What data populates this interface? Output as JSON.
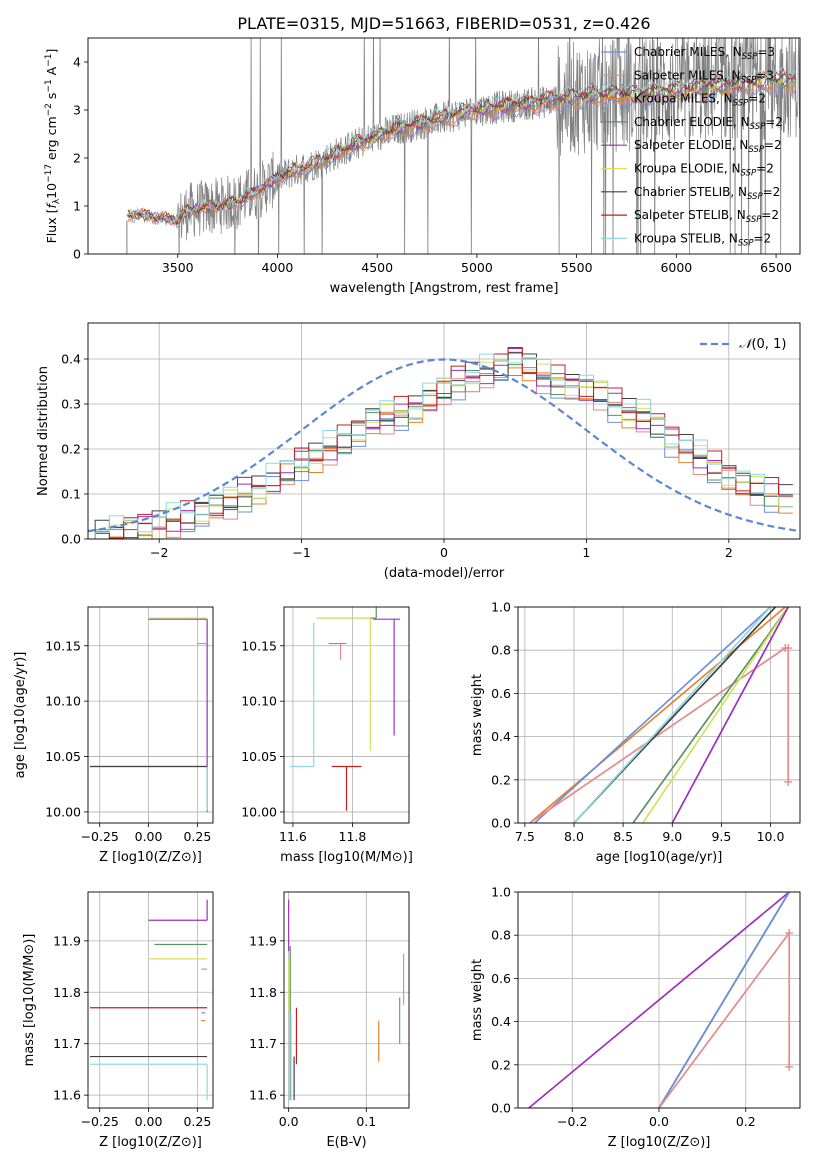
{
  "figure": {
    "title": "PLATE=0315, MJD=51663, FIBERID=0531, z=0.426"
  },
  "legend_models": [
    {
      "name": "Chabrier MILES, N_SSP=3",
      "color": "#6e8fdc"
    },
    {
      "name": "Salpeter MILES, N_SSP=3",
      "color": "#e68a8a"
    },
    {
      "name": "Kroupa MILES, N_SSP=2",
      "color": "#e8822a"
    },
    {
      "name": "Chabrier ELODIE, N_SSP=2",
      "color": "#5a9068"
    },
    {
      "name": "Salpeter ELODIE, N_SSP=2",
      "color": "#9b30c0"
    },
    {
      "name": "Kroupa ELODIE, N_SSP=2",
      "color": "#d4e25a"
    },
    {
      "name": "Chabrier STELIB, N_SSP=2",
      "color": "#404040"
    },
    {
      "name": "Salpeter STELIB, N_SSP=2",
      "color": "#c02020"
    },
    {
      "name": "Kroupa STELIB, N_SSP=2",
      "color": "#90d8e0"
    }
  ],
  "legend_labels": [
    {
      "pre": "Chabrier MILES, N",
      "sub": "SSP",
      "post": "=3"
    },
    {
      "pre": "Salpeter MILES, N",
      "sub": "SSP",
      "post": "=3"
    },
    {
      "pre": "Kroupa MILES, N",
      "sub": "SSP",
      "post": "=2"
    },
    {
      "pre": "Chabrier ELODIE, N",
      "sub": "SSP",
      "post": "=2"
    },
    {
      "pre": "Salpeter ELODIE, N",
      "sub": "SSP",
      "post": "=2"
    },
    {
      "pre": "Kroupa ELODIE, N",
      "sub": "SSP",
      "post": "=2"
    },
    {
      "pre": "Chabrier STELIB, N",
      "sub": "SSP",
      "post": "=2"
    },
    {
      "pre": "Salpeter STELIB, N",
      "sub": "SSP",
      "post": "=2"
    },
    {
      "pre": "Kroupa STELIB, N",
      "sub": "SSP",
      "post": "=2"
    }
  ],
  "chart_data": [
    {
      "id": "spectrum",
      "type": "line",
      "xlabel": "wavelength [Angstrom, rest frame]",
      "ylabel": "Flux [fλ10⁻¹⁷ erg cm⁻² s⁻¹ A⁻¹]",
      "xlim": [
        3050,
        6620
      ],
      "ylim": [
        0,
        4.5
      ],
      "xticks": [
        3500,
        4000,
        4500,
        5000,
        5500,
        6000,
        6500
      ],
      "yticks": [
        0,
        1,
        2,
        3,
        4
      ],
      "data_color": "#808080",
      "model_anchor_points": {
        "x": [
          3245,
          3300,
          3500,
          3550,
          3700,
          3800,
          3900,
          4000,
          4200,
          4400,
          4600,
          4800,
          5000,
          5200,
          5400,
          5600,
          5800,
          6000,
          6200,
          6400,
          6500
        ],
        "y": [
          0.8,
          0.82,
          0.7,
          0.9,
          1.0,
          1.1,
          1.3,
          1.6,
          1.9,
          2.3,
          2.6,
          2.8,
          3.0,
          3.1,
          3.2,
          3.3,
          3.3,
          3.4,
          3.5,
          3.55,
          3.6
        ]
      },
      "grid": false
    },
    {
      "id": "residuals",
      "type": "line",
      "xlabel": "(data-model)/error",
      "ylabel": "Normed distribution",
      "xlim": [
        -2.5,
        2.5
      ],
      "ylim": [
        0,
        0.48
      ],
      "xticks": [
        -2,
        -1,
        0,
        1,
        2
      ],
      "yticks": [
        0.0,
        0.1,
        0.2,
        0.3,
        0.4
      ],
      "grid": true,
      "legend_label": "N(0,1)",
      "legend_position": "top-right",
      "gaussian_color": "#5a87d6",
      "hist_x": [
        -2.4,
        -2.3,
        -2.2,
        -2.1,
        -2.0,
        -1.9,
        -1.8,
        -1.7,
        -1.6,
        -1.5,
        -1.4,
        -1.3,
        -1.2,
        -1.1,
        -1.0,
        -0.9,
        -0.8,
        -0.7,
        -0.6,
        -0.5,
        -0.4,
        -0.3,
        -0.2,
        -0.1,
        0.0,
        0.1,
        0.2,
        0.3,
        0.4,
        0.5,
        0.6,
        0.7,
        0.8,
        0.9,
        1.0,
        1.1,
        1.2,
        1.3,
        1.4,
        1.5,
        1.6,
        1.7,
        1.8,
        1.9,
        2.0,
        2.1,
        2.2,
        2.3,
        2.4
      ],
      "hist_base": [
        0.01,
        0.012,
        0.02,
        0.025,
        0.03,
        0.04,
        0.05,
        0.06,
        0.07,
        0.08,
        0.1,
        0.11,
        0.13,
        0.15,
        0.17,
        0.18,
        0.2,
        0.22,
        0.24,
        0.26,
        0.27,
        0.28,
        0.29,
        0.31,
        0.33,
        0.35,
        0.36,
        0.37,
        0.38,
        0.4,
        0.38,
        0.36,
        0.35,
        0.34,
        0.33,
        0.32,
        0.3,
        0.28,
        0.27,
        0.25,
        0.22,
        0.2,
        0.18,
        0.16,
        0.14,
        0.12,
        0.11,
        0.1,
        0.09
      ]
    },
    {
      "id": "age-vs-Z",
      "type": "scatter",
      "xlabel": "Z [log10(Z/Z⊙)]",
      "ylabel": "age  [log10(age/yr)]",
      "xlim": [
        -0.31,
        0.33
      ],
      "ylim": [
        9.99,
        10.185
      ],
      "xticks": [
        -0.25,
        0.0,
        0.25
      ],
      "yticks": [
        10.0,
        10.05,
        10.1,
        10.15
      ],
      "grid": true,
      "points": [
        {
          "model": 4,
          "x": 0.3,
          "y": 10.174,
          "xerr": [
            0.3,
            0.0
          ],
          "yerr": [
            0.174,
            0.0
          ]
        },
        {
          "model": 5,
          "x": 0.3,
          "y": 10.175,
          "xerr": [
            0.3,
            0.0
          ],
          "yerr": [
            0.0,
            0.0
          ]
        },
        {
          "model": 1,
          "x": 0.28,
          "y": 10.152,
          "xerr": [
            0.03,
            0.02
          ],
          "yerr": [
            0.0,
            0.0
          ]
        },
        {
          "model": 8,
          "x": 0.3,
          "y": 10.041,
          "xerr": [
            0.6,
            0.0
          ],
          "yerr": [
            0.04,
            0.0
          ]
        },
        {
          "model": 6,
          "x": 0.3,
          "y": 10.041,
          "xerr": [
            0.6,
            0.0
          ],
          "yerr": [
            0.0,
            0.0
          ]
        }
      ]
    },
    {
      "id": "age-vs-mass",
      "type": "scatter",
      "xlabel": "mass [log10(M/M⊙)]",
      "ylabel": "",
      "xlim": [
        11.57,
        11.99
      ],
      "ylim": [
        9.99,
        10.185
      ],
      "xticks": [
        11.6,
        11.8
      ],
      "yticks": [
        10.0,
        10.05,
        10.1,
        10.15
      ],
      "grid": true,
      "points": [
        {
          "model": 4,
          "x": 11.94,
          "y": 10.174,
          "xerr": [
            0.07,
            0.02
          ],
          "yerr": [
            0.105,
            0.0
          ]
        },
        {
          "model": 3,
          "x": 11.88,
          "y": 10.175,
          "xerr": [
            0.2,
            0.0
          ],
          "yerr": [
            0.0,
            0.12
          ]
        },
        {
          "model": 5,
          "x": 11.86,
          "y": 10.175,
          "xerr": [
            0.18,
            0.0
          ],
          "yerr": [
            0.12,
            0.0
          ]
        },
        {
          "model": 8,
          "x": 11.67,
          "y": 10.041,
          "xerr": [
            0.08,
            0.0
          ],
          "yerr": [
            0.0,
            0.13
          ]
        },
        {
          "model": 7,
          "x": 11.78,
          "y": 10.041,
          "xerr": [
            0.05,
            0.05
          ],
          "yerr": [
            0.04,
            0.0
          ]
        },
        {
          "model": 0,
          "x": 11.76,
          "y": 10.152,
          "xerr": [
            0.04,
            0.02
          ],
          "yerr": [
            0.0,
            0.0
          ]
        },
        {
          "model": 1,
          "x": 11.76,
          "y": 10.152,
          "xerr": [
            0.0,
            0.0
          ],
          "yerr": [
            0.015,
            0.0
          ]
        }
      ]
    },
    {
      "id": "massweight-vs-age",
      "type": "line",
      "xlabel": "age  [log10(age/yr)]",
      "ylabel": "mass weight",
      "xlim": [
        7.43,
        10.3
      ],
      "ylim": [
        0,
        1
      ],
      "xticks": [
        7.5,
        8.0,
        8.5,
        9.0,
        9.5,
        10.0
      ],
      "yticks": [
        0.0,
        0.2,
        0.4,
        0.6,
        0.8,
        1.0
      ],
      "grid": true,
      "lines": [
        {
          "model": 2,
          "x": [
            7.55,
            10.15
          ],
          "y": [
            0.0,
            1.0
          ]
        },
        {
          "model": 0,
          "x": [
            7.6,
            10.0
          ],
          "y": [
            0.0,
            1.0
          ]
        },
        {
          "model": 1,
          "x": [
            7.55,
            10.15,
            10.18,
            10.18
          ],
          "y": [
            0.0,
            0.81,
            0.81,
            0.19
          ]
        },
        {
          "model": 6,
          "x": [
            8.0,
            10.05
          ],
          "y": [
            0.0,
            1.0
          ]
        },
        {
          "model": 8,
          "x": [
            8.0,
            10.0
          ],
          "y": [
            0.0,
            1.0
          ]
        },
        {
          "model": 3,
          "x": [
            8.6,
            10.18
          ],
          "y": [
            0.0,
            1.0
          ]
        },
        {
          "model": 5,
          "x": [
            8.7,
            10.18
          ],
          "y": [
            0.0,
            1.0
          ]
        },
        {
          "model": 4,
          "x": [
            9.0,
            10.18
          ],
          "y": [
            0.0,
            1.0
          ]
        }
      ]
    },
    {
      "id": "mass-vs-Z",
      "type": "scatter",
      "xlabel": "Z [log10(Z/Z⊙)]",
      "ylabel": "mass [log10(M/M⊙)]",
      "xlim": [
        -0.31,
        0.33
      ],
      "ylim": [
        11.575,
        11.995
      ],
      "xticks": [
        -0.25,
        0.0,
        0.25
      ],
      "yticks": [
        11.6,
        11.7,
        11.8,
        11.9
      ],
      "grid": true,
      "points": [
        {
          "model": 4,
          "x": 0.3,
          "y": 11.94,
          "xerr": [
            0.3,
            0.0
          ],
          "yerr": [
            0.0,
            0.04
          ]
        },
        {
          "model": 3,
          "x": 0.3,
          "y": 11.893,
          "xerr": [
            0.27,
            0.0
          ],
          "yerr": [
            0.0,
            0.0
          ]
        },
        {
          "model": 5,
          "x": 0.3,
          "y": 11.865,
          "xerr": [
            0.3,
            0.0
          ],
          "yerr": [
            0.0,
            0.0
          ]
        },
        {
          "model": 1,
          "x": 0.3,
          "y": 11.845,
          "xerr": [
            0.03,
            0.0
          ],
          "yerr": [
            0.0,
            0.0
          ]
        },
        {
          "model": 7,
          "x": 0.3,
          "y": 11.77,
          "xerr": [
            0.6,
            0.0
          ],
          "yerr": [
            0.0,
            0.0
          ]
        },
        {
          "model": 2,
          "x": 0.29,
          "y": 11.745,
          "xerr": [
            0.02,
            0.0
          ],
          "yerr": [
            0.0,
            0.0
          ]
        },
        {
          "model": 0,
          "x": 0.29,
          "y": 11.76,
          "xerr": [
            0.02,
            0.0
          ],
          "yerr": [
            0.0,
            0.0
          ]
        },
        {
          "model": 6,
          "x": 0.3,
          "y": 11.675,
          "xerr": [
            0.6,
            0.0
          ],
          "yerr": [
            0.0,
            0.0
          ]
        },
        {
          "model": 8,
          "x": 0.3,
          "y": 11.66,
          "xerr": [
            0.6,
            0.0
          ],
          "yerr": [
            0.07,
            0.0
          ]
        }
      ]
    },
    {
      "id": "mass-vs-EBV",
      "type": "scatter",
      "xlabel": "E(B-V)",
      "ylabel": "",
      "xlim": [
        -0.006,
        0.155
      ],
      "ylim": [
        11.575,
        11.995
      ],
      "xticks": [
        0.0,
        0.1
      ],
      "yticks": [
        11.6,
        11.7,
        11.8,
        11.9
      ],
      "grid": true,
      "points": [
        {
          "model": 4,
          "x": 0.0,
          "y": 11.94,
          "xerr": [
            0,
            0
          ],
          "yerr": [
            0.06,
            0.04
          ]
        },
        {
          "model": 5,
          "x": 0.0,
          "y": 11.865,
          "xerr": [
            0,
            0
          ],
          "yerr": [
            0.1,
            0.0
          ]
        },
        {
          "model": 3,
          "x": 0.002,
          "y": 11.89,
          "xerr": [
            0,
            0
          ],
          "yerr": [
            0.3,
            0.0
          ]
        },
        {
          "model": 8,
          "x": 0.003,
          "y": 11.66,
          "xerr": [
            0,
            0
          ],
          "yerr": [
            0.07,
            0.1
          ]
        },
        {
          "model": 6,
          "x": 0.007,
          "y": 11.675,
          "xerr": [
            0,
            0
          ],
          "yerr": [
            0.085,
            0.0
          ]
        },
        {
          "model": 7,
          "x": 0.01,
          "y": 11.77,
          "xerr": [
            0,
            0
          ],
          "yerr": [
            0.11,
            0.0
          ]
        },
        {
          "model": 2,
          "x": 0.116,
          "y": 11.705,
          "xerr": [
            0,
            0
          ],
          "yerr": [
            0.04,
            0.04
          ]
        },
        {
          "model": 0,
          "x": 0.143,
          "y": 11.745,
          "xerr": [
            0,
            0
          ],
          "yerr": [
            0.045,
            0.045
          ]
        },
        {
          "model": 1,
          "x": 0.148,
          "y": 11.82,
          "xerr": [
            0,
            0
          ],
          "yerr": [
            0.045,
            0.055
          ]
        }
      ]
    },
    {
      "id": "massweight-vs-Z",
      "type": "line",
      "xlabel": "Z [log10(Z/Z⊙)]",
      "ylabel": "mass weight",
      "xlim": [
        -0.325,
        0.325
      ],
      "ylim": [
        0,
        1
      ],
      "xticks": [
        -0.2,
        0.0,
        0.2
      ],
      "yticks": [
        0.0,
        0.2,
        0.4,
        0.6,
        0.8,
        1.0
      ],
      "grid": true,
      "lines": [
        {
          "model": 4,
          "x": [
            -0.3,
            0.3
          ],
          "y": [
            0.0,
            1.0
          ]
        },
        {
          "model": 8,
          "x": [
            0.0,
            0.3
          ],
          "y": [
            0.0,
            1.0
          ]
        },
        {
          "model": 3,
          "x": [
            0.0,
            0.3
          ],
          "y": [
            0.0,
            1.0
          ]
        },
        {
          "model": 0,
          "x": [
            0.0,
            0.3
          ],
          "y": [
            0.0,
            1.0
          ]
        },
        {
          "model": 1,
          "x": [
            0.0,
            0.3,
            0.3
          ],
          "y": [
            0.0,
            0.81,
            0.19
          ]
        }
      ]
    }
  ]
}
